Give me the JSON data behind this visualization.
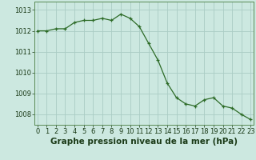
{
  "x": [
    0,
    1,
    2,
    3,
    4,
    5,
    6,
    7,
    8,
    9,
    10,
    11,
    12,
    13,
    14,
    15,
    16,
    17,
    18,
    19,
    20,
    21,
    22,
    23
  ],
  "y": [
    1012.0,
    1012.0,
    1012.1,
    1012.1,
    1012.4,
    1012.5,
    1012.5,
    1012.6,
    1012.5,
    1012.8,
    1012.6,
    1012.2,
    1011.4,
    1010.6,
    1009.5,
    1008.8,
    1008.5,
    1008.4,
    1008.7,
    1008.8,
    1008.4,
    1008.3,
    1008.0,
    1007.75
  ],
  "line_color": "#2d6b27",
  "marker_color": "#2d6b27",
  "bg_color": "#cce8e0",
  "grid_color": "#aaccc4",
  "title": "Graphe pression niveau de la mer (hPa)",
  "ylim_min": 1007.5,
  "ylim_max": 1013.4,
  "xlim_min": -0.3,
  "xlim_max": 23.3,
  "yticks": [
    1008,
    1009,
    1010,
    1011,
    1012,
    1013
  ],
  "xticks": [
    0,
    1,
    2,
    3,
    4,
    5,
    6,
    7,
    8,
    9,
    10,
    11,
    12,
    13,
    14,
    15,
    16,
    17,
    18,
    19,
    20,
    21,
    22,
    23
  ],
  "title_fontsize": 7.5,
  "tick_fontsize": 6,
  "marker_size": 3.0,
  "line_width": 0.9,
  "title_color": "#1a3a17",
  "tick_color": "#1a3a17",
  "spine_color": "#5a8a55"
}
